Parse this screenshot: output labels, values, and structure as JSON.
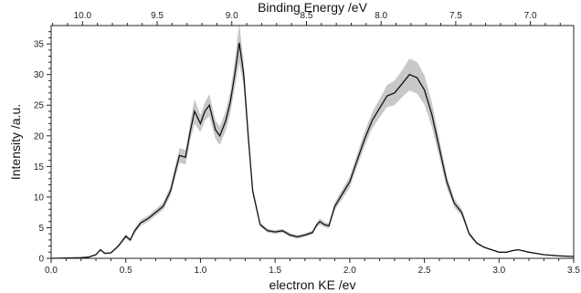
{
  "chart_data": {
    "type": "line",
    "title": "",
    "xlabel": "electron KE /ev",
    "ylabel": "Intensity /a.u.",
    "top_xlabel": "Binding Energy /eV",
    "xlim": [
      0.0,
      3.5
    ],
    "ylim": [
      0,
      38
    ],
    "x_ticks": [
      "0.0",
      "0.5",
      "1.0",
      "1.5",
      "2.0",
      "2.5",
      "3.0",
      "3.5"
    ],
    "y_ticks": [
      "0",
      "5",
      "10",
      "15",
      "20",
      "25",
      "30",
      "35"
    ],
    "top_ticks": [
      "10.0",
      "9.5",
      "9.0",
      "8.5",
      "8.0",
      "7.5",
      "7.0"
    ],
    "top_tick_ke": [
      0.21,
      0.71,
      1.21,
      1.71,
      2.21,
      2.71,
      3.21
    ],
    "grid": false,
    "legend": "none",
    "colors": {
      "line": "#111111",
      "band": "#c8c8c8",
      "axis": "#222222"
    },
    "series": [
      {
        "x": [
          0.0,
          0.2,
          0.25,
          0.3,
          0.33,
          0.36,
          0.4,
          0.45,
          0.5,
          0.53,
          0.56,
          0.6,
          0.65,
          0.7,
          0.75,
          0.8,
          0.83,
          0.86,
          0.9,
          0.93,
          0.96,
          1.0,
          1.03,
          1.06,
          1.1,
          1.13,
          1.17,
          1.2,
          1.23,
          1.26,
          1.29,
          1.32,
          1.35,
          1.4,
          1.45,
          1.5,
          1.55,
          1.6,
          1.65,
          1.7,
          1.75,
          1.78,
          1.8,
          1.83,
          1.86,
          1.9,
          1.95,
          2.0,
          2.05,
          2.1,
          2.15,
          2.2,
          2.25,
          2.3,
          2.35,
          2.4,
          2.45,
          2.5,
          2.55,
          2.6,
          2.65,
          2.7,
          2.75,
          2.8,
          2.85,
          2.9,
          3.0,
          3.05,
          3.1,
          3.13,
          3.2,
          3.3,
          3.4,
          3.5
        ],
        "y": [
          0.0,
          0.1,
          0.2,
          0.6,
          1.4,
          0.8,
          0.9,
          2.0,
          3.6,
          3.0,
          4.5,
          5.8,
          6.5,
          7.5,
          8.5,
          11.0,
          14.0,
          16.8,
          16.5,
          20.5,
          24.0,
          22.0,
          24.0,
          25.0,
          21.0,
          20.0,
          22.5,
          25.5,
          30.0,
          35.2,
          30.0,
          20.0,
          11.0,
          5.5,
          4.5,
          4.3,
          4.5,
          3.8,
          3.5,
          3.8,
          4.2,
          5.5,
          6.0,
          5.5,
          5.3,
          8.5,
          10.5,
          12.5,
          16.0,
          19.5,
          22.5,
          24.5,
          26.5,
          27.0,
          28.5,
          30.0,
          29.5,
          27.5,
          23.5,
          18.0,
          12.5,
          9.0,
          7.5,
          4.0,
          2.5,
          1.8,
          1.0,
          1.0,
          1.3,
          1.4,
          1.0,
          0.6,
          0.4,
          0.3
        ],
        "band": [
          0.05,
          0.05,
          0.05,
          0.1,
          0.2,
          0.15,
          0.15,
          0.25,
          0.35,
          0.3,
          0.4,
          0.5,
          0.5,
          0.5,
          0.6,
          0.8,
          1.0,
          1.2,
          1.2,
          1.4,
          2.0,
          1.4,
          1.5,
          1.8,
          1.5,
          1.5,
          1.6,
          1.8,
          2.2,
          3.2,
          2.0,
          1.0,
          0.6,
          0.3,
          0.3,
          0.3,
          0.3,
          0.3,
          0.3,
          0.3,
          0.3,
          0.4,
          0.5,
          0.4,
          0.4,
          0.6,
          0.8,
          0.9,
          1.0,
          1.2,
          1.3,
          1.5,
          1.8,
          2.0,
          2.2,
          2.6,
          2.6,
          2.4,
          2.0,
          1.5,
          1.0,
          0.7,
          0.6,
          0.3,
          0.2,
          0.1,
          0.05,
          0.05,
          0.05,
          0.05,
          0.05,
          0.05,
          0.05,
          0.05
        ]
      }
    ]
  }
}
